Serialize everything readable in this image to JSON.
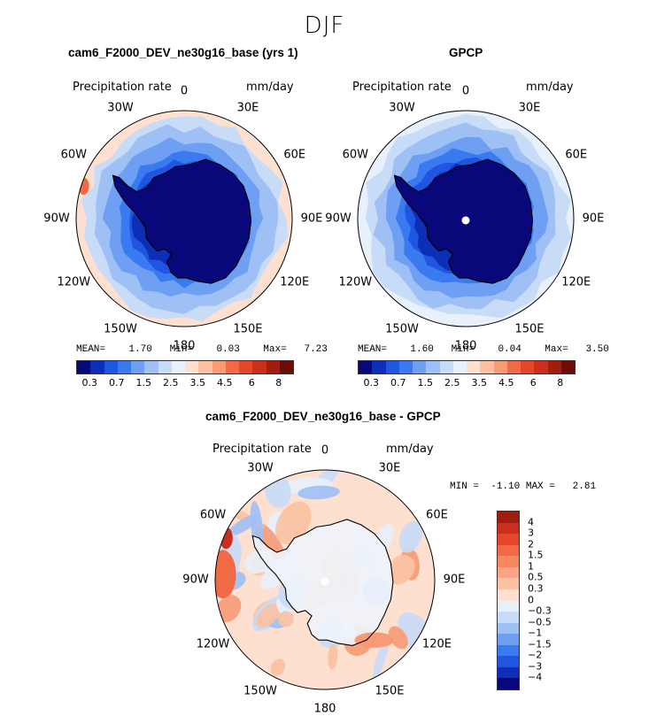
{
  "title": "DJF",
  "panels": {
    "model": {
      "title": "cam6_F2000_DEV_ne30g16_base (yrs 1)",
      "left_sub": "Precipitation rate",
      "right_sub": "mm/day",
      "mean_label": "MEAN=",
      "mean": "1.70",
      "min_label": "Min=",
      "min": "0.03",
      "max_label": "Max=",
      "max": "7.23"
    },
    "obs": {
      "title": "GPCP",
      "left_sub": "Precipitation rate",
      "right_sub": "mm/day",
      "mean_label": "MEAN=",
      "mean": "1.60",
      "min_label": "Min=",
      "min": "0.04",
      "max_label": "Max=",
      "max": "3.50"
    },
    "diff": {
      "title": "cam6_F2000_DEV_ne30g16_base - GPCP",
      "left_sub": "Precipitation rate",
      "right_sub": "mm/day",
      "min_label": "MIN =",
      "min": "-1.10",
      "max_label": "MAX =",
      "max": "2.81"
    }
  },
  "lon_labels": [
    "0",
    "30E",
    "60E",
    "90E",
    "120E",
    "150E",
    "180",
    "150W",
    "120W",
    "90W",
    "60W",
    "30W"
  ],
  "chart_data": [
    {
      "type": "heatmap",
      "title": "cam6_F2000_DEV_ne30g16_base (yrs 1)",
      "projection": "south polar stereographic",
      "variable": "Precipitation rate",
      "units": "mm/day",
      "mean": 1.7,
      "min": 0.03,
      "max": 7.23,
      "colorbar_ticks": [
        "0.3",
        "0.7",
        "1.5",
        "2.5",
        "3.5",
        "4.5",
        "6",
        "8"
      ],
      "colors": [
        "#08087a",
        "#0d2fb8",
        "#1f55e0",
        "#3a7af0",
        "#6f9ff3",
        "#9fc0f5",
        "#c8dcf7",
        "#e8f1fb",
        "#fde0cf",
        "#fbc1a2",
        "#f79a75",
        "#f26a45",
        "#e6462a",
        "#c92f1c",
        "#a11d10",
        "#6e0c07"
      ]
    },
    {
      "type": "heatmap",
      "title": "GPCP",
      "projection": "south polar stereographic",
      "variable": "Precipitation rate",
      "units": "mm/day",
      "mean": 1.6,
      "min": 0.04,
      "max": 3.5,
      "colorbar_ticks": [
        "0.3",
        "0.7",
        "1.5",
        "2.5",
        "3.5",
        "4.5",
        "6",
        "8"
      ],
      "colors": [
        "#08087a",
        "#0d2fb8",
        "#1f55e0",
        "#3a7af0",
        "#6f9ff3",
        "#9fc0f5",
        "#c8dcf7",
        "#e8f1fb",
        "#fde0cf",
        "#fbc1a2",
        "#f79a75",
        "#f26a45",
        "#e6462a",
        "#c92f1c",
        "#a11d10",
        "#6e0c07"
      ]
    },
    {
      "type": "heatmap",
      "title": "cam6_F2000_DEV_ne30g16_base - GPCP",
      "projection": "south polar stereographic",
      "variable": "Precipitation rate",
      "units": "mm/day",
      "min": -1.1,
      "max": 2.81,
      "colorbar_ticks": [
        "4",
        "3",
        "2",
        "1.5",
        "1",
        "0.5",
        "0.3",
        "0",
        "−0.3",
        "−0.5",
        "−1",
        "−1.5",
        "−2",
        "−3",
        "−4"
      ],
      "colors": [
        "#a11d10",
        "#c92f1c",
        "#e6462a",
        "#f26a45",
        "#f7875f",
        "#f9a585",
        "#fbc1a2",
        "#fde0cf",
        "#e8f1fb",
        "#c8dcf7",
        "#9fc0f5",
        "#6f9ff3",
        "#3a7af0",
        "#1f55e0",
        "#0d2fb8",
        "#08087a"
      ]
    }
  ]
}
